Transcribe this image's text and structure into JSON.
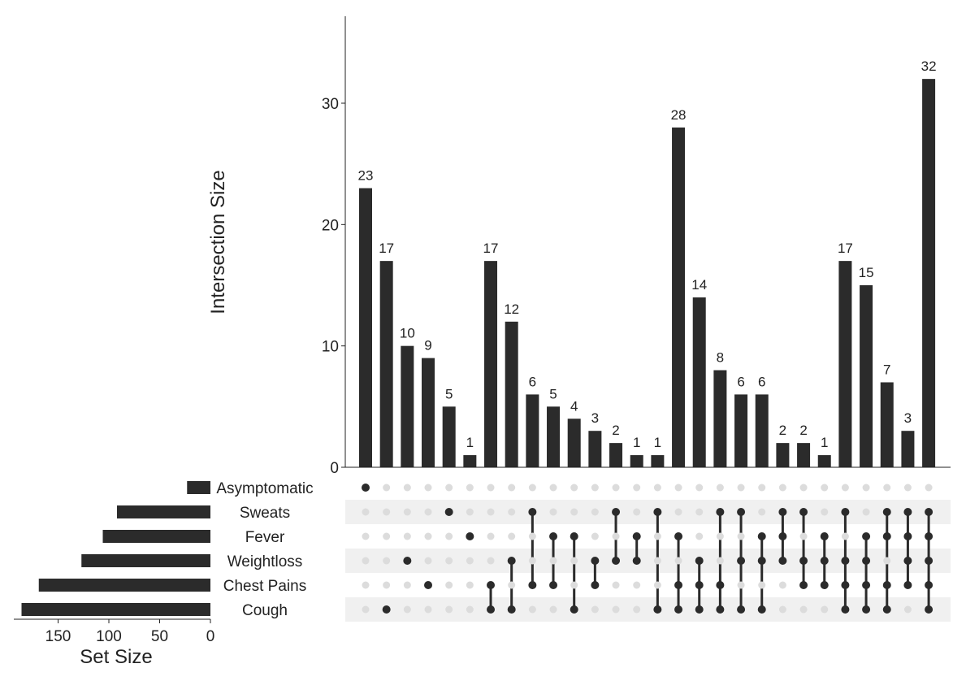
{
  "chart_data": {
    "type": "bar",
    "subtype": "upset",
    "ylabel": "Intersection Size",
    "xlabel_sets": "Set Size",
    "ylim": [
      0,
      37
    ],
    "yticks": [
      0,
      10,
      20,
      30
    ],
    "set_ticks": [
      150,
      100,
      50,
      0
    ],
    "sets": [
      {
        "name": "Asymptomatic",
        "size": 23
      },
      {
        "name": "Sweats",
        "size": 92
      },
      {
        "name": "Fever",
        "size": 106
      },
      {
        "name": "Weightloss",
        "size": 127
      },
      {
        "name": "Chest Pains",
        "size": 169
      },
      {
        "name": "Cough",
        "size": 186
      }
    ],
    "intersections": [
      {
        "value": 23,
        "sets": [
          "Asymptomatic"
        ]
      },
      {
        "value": 17,
        "sets": [
          "Cough"
        ]
      },
      {
        "value": 10,
        "sets": [
          "Weightloss"
        ]
      },
      {
        "value": 9,
        "sets": [
          "Chest Pains"
        ]
      },
      {
        "value": 5,
        "sets": [
          "Sweats"
        ]
      },
      {
        "value": 1,
        "sets": [
          "Fever"
        ]
      },
      {
        "value": 17,
        "sets": [
          "Chest Pains",
          "Cough"
        ]
      },
      {
        "value": 12,
        "sets": [
          "Weightloss",
          "Cough"
        ]
      },
      {
        "value": 6,
        "sets": [
          "Sweats",
          "Chest Pains"
        ]
      },
      {
        "value": 5,
        "sets": [
          "Fever",
          "Chest Pains"
        ]
      },
      {
        "value": 4,
        "sets": [
          "Fever",
          "Cough"
        ]
      },
      {
        "value": 3,
        "sets": [
          "Weightloss",
          "Chest Pains"
        ]
      },
      {
        "value": 2,
        "sets": [
          "Sweats",
          "Weightloss"
        ]
      },
      {
        "value": 1,
        "sets": [
          "Fever",
          "Weightloss"
        ]
      },
      {
        "value": 1,
        "sets": [
          "Sweats",
          "Cough"
        ]
      },
      {
        "value": 28,
        "sets": [
          "Fever",
          "Chest Pains",
          "Cough"
        ]
      },
      {
        "value": 14,
        "sets": [
          "Weightloss",
          "Chest Pains",
          "Cough"
        ]
      },
      {
        "value": 8,
        "sets": [
          "Sweats",
          "Chest Pains",
          "Cough"
        ]
      },
      {
        "value": 6,
        "sets": [
          "Sweats",
          "Weightloss",
          "Cough"
        ]
      },
      {
        "value": 6,
        "sets": [
          "Fever",
          "Weightloss",
          "Cough"
        ]
      },
      {
        "value": 2,
        "sets": [
          "Sweats",
          "Fever",
          "Weightloss"
        ]
      },
      {
        "value": 2,
        "sets": [
          "Sweats",
          "Weightloss",
          "Chest Pains"
        ]
      },
      {
        "value": 1,
        "sets": [
          "Fever",
          "Weightloss",
          "Chest Pains"
        ]
      },
      {
        "value": 17,
        "sets": [
          "Sweats",
          "Weightloss",
          "Chest Pains",
          "Cough"
        ]
      },
      {
        "value": 15,
        "sets": [
          "Fever",
          "Weightloss",
          "Chest Pains",
          "Cough"
        ]
      },
      {
        "value": 7,
        "sets": [
          "Sweats",
          "Fever",
          "Chest Pains",
          "Cough"
        ]
      },
      {
        "value": 3,
        "sets": [
          "Sweats",
          "Fever",
          "Weightloss",
          "Chest Pains"
        ]
      },
      {
        "value": 32,
        "sets": [
          "Sweats",
          "Fever",
          "Weightloss",
          "Chest Pains",
          "Cough"
        ]
      }
    ],
    "colors": {
      "bar": "#2b2b2b",
      "dot_off": "#dcdcdc",
      "stripe": "#f0f0f0"
    }
  }
}
